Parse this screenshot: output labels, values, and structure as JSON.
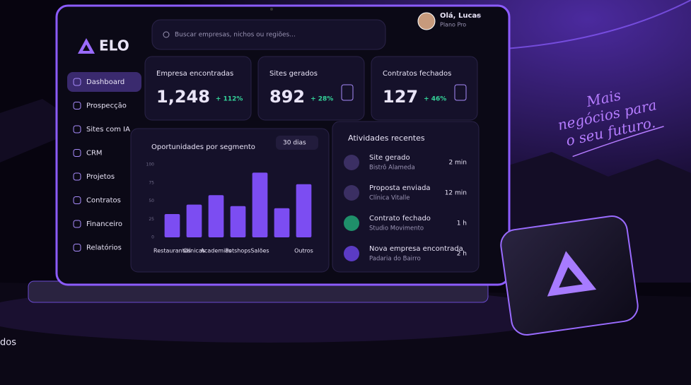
{
  "brand": "ELO",
  "search_placeholder": "Buscar empresas, nichos ou regiões...",
  "user": {
    "greeting": "Olá, Lucas",
    "plan": "Plano Pro"
  },
  "nav": [
    "Dashboard",
    "Prospecção",
    "Sites com IA",
    "CRM",
    "Projetos",
    "Contratos",
    "Financeiro",
    "Relatórios"
  ],
  "stats": [
    {
      "label": "Empresa encontradas",
      "value": "1,248",
      "change": "+ 112%"
    },
    {
      "label": "Sites gerados",
      "value": "892",
      "change": "+ 28%"
    },
    {
      "label": "Contratos fechados",
      "value": "127",
      "change": "+ 46%"
    }
  ],
  "chart_filter": "30 dias",
  "chart_data": {
    "type": "bar",
    "title": "Oportunidades por segmento",
    "categories": [
      "Restaurantes",
      "Clínicas",
      "Academias",
      "Petshops",
      "Salões",
      null,
      "Outros"
    ],
    "values": [
      32,
      45,
      58,
      43,
      89,
      40,
      73
    ],
    "color": "#7c4df2",
    "ylim": [
      0,
      100
    ],
    "yticks": [
      0,
      25,
      50,
      75,
      100
    ],
    "grid": false
  },
  "activities_title": "Atividades recentes",
  "activities": [
    {
      "title": "Site gerado",
      "subtitle": "Bistrô Alameda",
      "time": "2 min"
    },
    {
      "title": "Proposta enviada",
      "subtitle": "Clínica Vitalle",
      "time": "12 min"
    },
    {
      "title": "Contrato fechado",
      "subtitle": "Studio Movimento",
      "time": "1 h"
    },
    {
      "title": "Nova empresa encontrada",
      "subtitle": "Padaria do Bairro",
      "time": "2 h"
    }
  ],
  "tagline": [
    "Mais",
    "negócios para",
    "o seu futuro."
  ],
  "edge_text": "dos"
}
